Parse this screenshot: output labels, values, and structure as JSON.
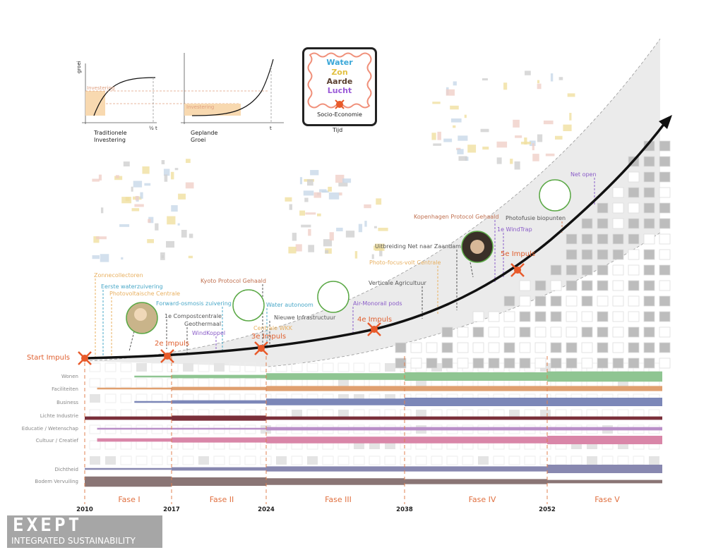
{
  "mini_charts": {
    "y_axis_label": "groei",
    "invest_label": "Investering",
    "left_caption": "Traditionele\nInvestering",
    "left_tick": "½ t",
    "right_caption": "Geplande\nGroei",
    "right_tick": "t"
  },
  "legend_box": {
    "water": "Water",
    "zon": "Zon",
    "aarde": "Aarde",
    "lucht": "Lucht",
    "socio": "Socio-Economie",
    "tijd": "Tijd"
  },
  "colors": {
    "impuls": "#e85a2a",
    "water": "#3aa7d8",
    "zon": "#e2c040",
    "aarde": "#5a4030",
    "lucht": "#9a5ad8"
  },
  "start_label": "Start Impuls",
  "annotations": {
    "zonnecollectoren": "Zonnecollectoren",
    "eerste_water": "Eerste waterzuivering",
    "pv_centrale": "Photovoltaische Centrale",
    "forward_osmosis": "Forward-osmosis zuivering",
    "compost": "1e Compostcentrale",
    "geothermaal": "Geothermaal",
    "windkoppel": "WindKoppel",
    "impuls2": "2e Impuls",
    "kyoto": "Kyoto Protocol Gehaald",
    "water_autonoom": "Water autonoom",
    "nieuwe_infra": "Nieuwe Infrastructuur",
    "centrale_wkk": "Centrale WKK",
    "impuls3": "3e Impuls",
    "air_monorail": "Air-Monorail pods",
    "impuls4": "4e Impuls",
    "verticale_agri": "Verticale Agricultuur",
    "photo_focus": "Photo-focus-volt Centrale",
    "uitbreiding": "Uitbreiding Net naar Zaandam",
    "kopenhagen": "Kopenhagen Protocol Gehaald",
    "photofusie": "Photofusie biopunten",
    "windtrap": "1e WindTrap",
    "impuls5": "5e Impuls",
    "net_open": "Net open"
  },
  "rows": [
    {
      "label": "Wonen",
      "color": "#8fc592",
      "start": 2014,
      "levels": [
        1,
        2,
        4,
        5,
        6
      ]
    },
    {
      "label": "Faciliteiten",
      "color": "#e0a070",
      "start": 2011,
      "levels": [
        1,
        2,
        3,
        3,
        3
      ]
    },
    {
      "label": "Business",
      "color": "#7c87b8",
      "start": 2014,
      "levels": [
        1,
        2,
        4,
        5,
        5
      ]
    },
    {
      "label": "Lichte Industrie",
      "color": "#7a2f3a",
      "start": 2010,
      "levels": [
        2,
        3,
        2,
        2,
        2
      ]
    },
    {
      "label": "Educatie / Wetenschap",
      "color": "#b98fc8",
      "start": 2011,
      "levels": [
        1,
        1,
        2,
        2,
        2
      ]
    },
    {
      "label": "Cultuur / Creatief",
      "color": "#d986a8",
      "start": 2011,
      "levels": [
        2,
        3,
        4,
        4,
        5
      ]
    },
    {
      "label": "Dichtheid",
      "color": "#8888b0",
      "start": 2010,
      "levels": [
        1,
        2,
        3,
        3,
        5
      ]
    },
    {
      "label": "Bodem Vervuiling",
      "color": "#8a7575",
      "start": 2010,
      "levels": [
        6,
        5,
        4,
        3,
        2
      ]
    }
  ],
  "years": [
    "2010",
    "2017",
    "2024",
    "2038",
    "2052"
  ],
  "phases": [
    "Fase I",
    "Fase II",
    "Fase III",
    "Fase IV",
    "Fase V"
  ],
  "logo": {
    "name": "EXEPT",
    "tagline": "INTEGRATED SUSTAINABILITY"
  }
}
